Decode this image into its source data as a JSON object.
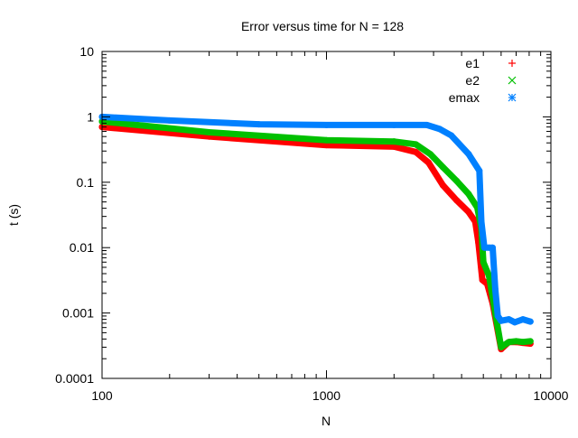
{
  "chart_data": {
    "type": "scatter",
    "title": "Error versus time for N = 128",
    "xlabel": "N",
    "ylabel": "t (s)",
    "xscale": "log",
    "yscale": "log",
    "xlim": [
      100,
      10000
    ],
    "ylim": [
      0.0001,
      10
    ],
    "xticks": [
      "100",
      "1000",
      "10000"
    ],
    "yticks": [
      "10",
      "1",
      "0.1",
      "0.01",
      "0.001",
      "0.0001"
    ],
    "grid": false,
    "legend_position": "top-right",
    "series": [
      {
        "name": "e1",
        "marker": "plus",
        "color": "#ff0000",
        "x": [
          100,
          300,
          1000,
          2000,
          2500,
          2850,
          3300,
          3800,
          4300,
          4600,
          4750,
          4950,
          5200,
          5500,
          6000,
          6500,
          7000,
          7500,
          8100
        ],
        "y": [
          0.7,
          0.5,
          0.37,
          0.35,
          0.29,
          0.2,
          0.09,
          0.053,
          0.035,
          0.025,
          0.012,
          0.0032,
          0.0028,
          0.0014,
          0.00028,
          0.00036,
          0.00036,
          0.00035,
          0.00034
        ]
      },
      {
        "name": "e2",
        "marker": "cross",
        "color": "#00c000",
        "x": [
          100,
          300,
          1000,
          2000,
          2500,
          2900,
          3300,
          3800,
          4300,
          4700,
          4900,
          5000,
          5300,
          5600,
          6000,
          6500,
          7000,
          7500,
          8100
        ],
        "y": [
          0.85,
          0.58,
          0.44,
          0.42,
          0.38,
          0.27,
          0.17,
          0.105,
          0.066,
          0.041,
          0.02,
          0.006,
          0.0037,
          0.0012,
          0.0003,
          0.00036,
          0.00037,
          0.00036,
          0.00037
        ]
      },
      {
        "name": "emax",
        "marker": "star",
        "color": "#0080ff",
        "x": [
          100,
          200,
          500,
          1000,
          2000,
          2800,
          3200,
          3600,
          4300,
          4800,
          4900,
          5050,
          5300,
          5500,
          5650,
          5800,
          6000,
          6500,
          6900,
          7500,
          8100
        ],
        "y": [
          1.0,
          0.88,
          0.77,
          0.75,
          0.75,
          0.75,
          0.65,
          0.52,
          0.27,
          0.15,
          0.025,
          0.01,
          0.01,
          0.01,
          0.0023,
          0.0009,
          0.00076,
          0.0008,
          0.00072,
          0.0008,
          0.00074
        ]
      }
    ]
  }
}
